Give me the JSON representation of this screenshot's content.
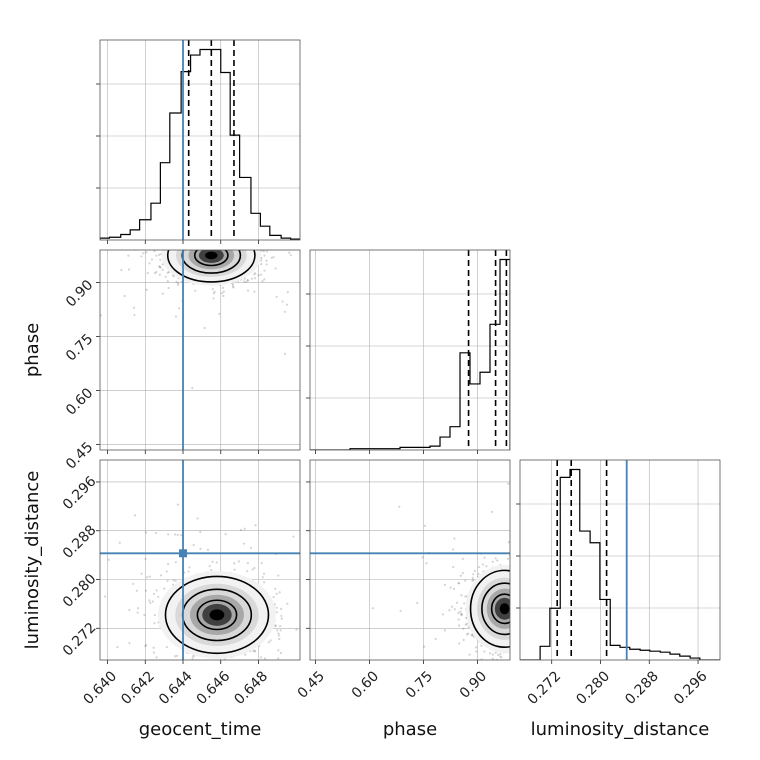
{
  "chart_data": {
    "type": "corner",
    "parameters": [
      "geocent_time",
      "phase",
      "luminosity_distance"
    ],
    "axis_labels": {
      "geocent_time": "geocent_time",
      "phase": "phase",
      "luminosity_distance": "luminosity_distance"
    },
    "ranges": {
      "geocent_time": [
        0.6396,
        0.6502
      ],
      "phase": [
        0.435,
        0.99
      ],
      "luminosity_distance": [
        0.2668,
        0.2996
      ]
    },
    "ticks": {
      "geocent_time": [
        "0.640",
        "0.642",
        "0.644",
        "0.646",
        "0.648"
      ],
      "phase": [
        "0.45",
        "0.60",
        "0.75",
        "0.90"
      ],
      "luminosity_distance": [
        "0.272",
        "0.280",
        "0.288",
        "0.296"
      ]
    },
    "truths": {
      "geocent_time": 0.644,
      "phase": null,
      "luminosity_distance": 0.2843
    },
    "quantiles": {
      "geocent_time": [
        0.6443,
        0.6455,
        0.6467
      ],
      "phase": [
        0.875,
        0.95,
        0.98
      ],
      "luminosity_distance": [
        0.2729,
        0.2752,
        0.281
      ]
    },
    "histograms": {
      "geocent_time": {
        "edges": [
          0.6396,
          0.6401,
          0.6407,
          0.6412,
          0.6417,
          0.6423,
          0.6428,
          0.6433,
          0.6439,
          0.6444,
          0.6449,
          0.6455,
          0.646,
          0.6465,
          0.647,
          0.6476,
          0.6481,
          0.6486,
          0.6492,
          0.6497,
          0.6502
        ],
        "counts": [
          2,
          3,
          6,
          11,
          22,
          40,
          84,
          138,
          183,
          201,
          207,
          207,
          182,
          114,
          68,
          29,
          15,
          5,
          2,
          1
        ]
      },
      "phase": {
        "edges": [
          0.435,
          0.4628,
          0.4905,
          0.5183,
          0.546,
          0.5738,
          0.6015,
          0.6293,
          0.657,
          0.6848,
          0.7125,
          0.7403,
          0.768,
          0.7958,
          0.8235,
          0.8513,
          0.879,
          0.9068,
          0.9345,
          0.9623,
          0.99
        ],
        "counts": [
          0,
          0,
          0,
          0,
          1,
          1,
          1,
          1,
          1,
          2,
          2,
          2,
          3,
          10,
          18,
          75,
          51,
          60,
          97,
          147
        ]
      },
      "luminosity_distance": {
        "edges": [
          0.2668,
          0.2684,
          0.2701,
          0.2717,
          0.2734,
          0.275,
          0.2766,
          0.2783,
          0.2799,
          0.2816,
          0.2832,
          0.2848,
          0.2865,
          0.2881,
          0.2898,
          0.2914,
          0.293,
          0.2947,
          0.2963,
          0.298,
          0.2996
        ],
        "counts": [
          0,
          0,
          14,
          53,
          187,
          195,
          132,
          120,
          62,
          15,
          13,
          11,
          10,
          9,
          8,
          6,
          4,
          2,
          0,
          0
        ]
      }
    },
    "density_peaks": [
      {
        "x": "geocent_time",
        "y": "phase",
        "cx": 0.6455,
        "cy": 0.975,
        "sx": 0.0011,
        "sy": 0.035
      },
      {
        "x": "geocent_time",
        "y": "luminosity_distance",
        "cx": 0.6458,
        "cy": 0.2742,
        "sx": 0.0013,
        "sy": 0.003
      },
      {
        "x": "phase",
        "y": "luminosity_distance",
        "cx": 0.975,
        "cy": 0.2752,
        "sx": 0.045,
        "sy": 0.003
      }
    ],
    "grid": true,
    "line_color": "#000000",
    "truth_color": "#4682b4"
  }
}
